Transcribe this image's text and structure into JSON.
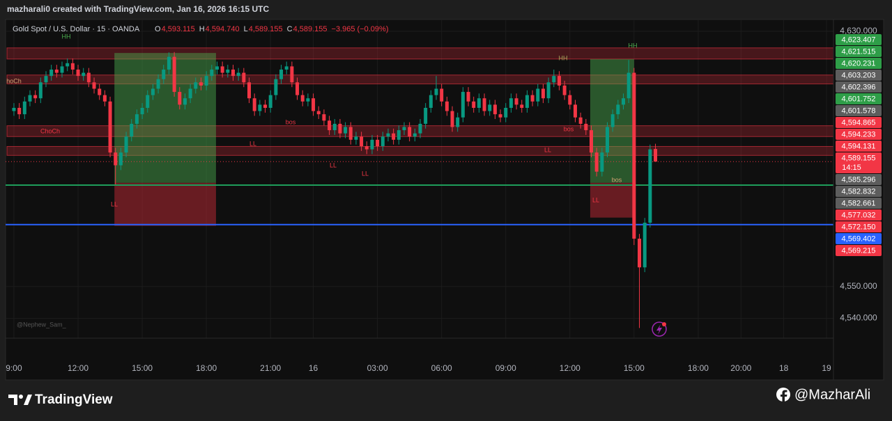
{
  "header": {
    "credit": "mazharali0 created with TradingView.com, Jan 16, 2026 16:15 UTC"
  },
  "chart_data": {
    "type": "candlestick",
    "title": "Gold Spot / U.S. Dollar · 15 · OANDA",
    "ohlc_legend": [
      "O",
      "4,593.115",
      "H",
      "4,594.740",
      "L",
      "4,589.155",
      "C",
      "4,589.155",
      "−3.965 (−0.09%)"
    ],
    "up_color": "#089981",
    "down_color": "#f23645",
    "open": [
      4605,
      4606,
      4604,
      4608,
      4610,
      4609,
      4614,
      4616,
      4618,
      4617,
      4619,
      4620,
      4618,
      4616,
      4617,
      4614,
      4612,
      4610,
      4608,
      4592,
      4588,
      4592,
      4597,
      4601,
      4604,
      4606,
      4610,
      4612,
      4615,
      4618,
      4622,
      4611,
      4607,
      4609,
      4612,
      4614,
      4613,
      4616,
      4618,
      4619,
      4617,
      4618,
      4616,
      4617,
      4614,
      4609,
      4605,
      4607,
      4606,
      4610,
      4615,
      4618,
      4619,
      4614,
      4610,
      4608,
      4609,
      4605,
      4604,
      4602,
      4599,
      4601,
      4598,
      4600,
      4596,
      4597,
      4594,
      4593,
      4596,
      4594,
      4597,
      4598,
      4596,
      4599,
      4600,
      4597,
      4598,
      4601,
      4606,
      4610,
      4612,
      4608,
      4605,
      4600,
      4603,
      4611,
      4608,
      4606,
      4609,
      4605,
      4607,
      4604,
      4603,
      4606,
      4609,
      4607,
      4606,
      4610,
      4608,
      4612,
      4609,
      4614,
      4616,
      4613,
      4610,
      4607,
      4603,
      4601,
      4599,
      4592,
      4586,
      4592,
      4600,
      4604,
      4607,
      4609,
      4617,
      4565,
      4556,
      4570,
      4593.115
    ],
    "high": [
      4607.5,
      4607.5,
      4609.5,
      4611.5,
      4611.5,
      4615.5,
      4617.5,
      4619.5,
      4619.5,
      4620.5,
      4621.5,
      4621.5,
      4619.5,
      4618.5,
      4618.5,
      4615.5,
      4613.5,
      4611.5,
      4609.5,
      4593.5,
      4593.5,
      4598.5,
      4602.5,
      4605.5,
      4607.5,
      4611.5,
      4613.5,
      4616.5,
      4619.5,
      4623.4,
      4623.5,
      4612.5,
      4610.5,
      4613.5,
      4615.5,
      4615.5,
      4617.5,
      4619.5,
      4620.5,
      4620.5,
      4619.5,
      4619.5,
      4618.5,
      4618.5,
      4615.5,
      4610.5,
      4608.5,
      4608.5,
      4611.5,
      4616.5,
      4619.5,
      4620.5,
      4620.5,
      4615.5,
      4611.5,
      4610.5,
      4610.5,
      4606.5,
      4605.5,
      4603.5,
      4602.5,
      4602.5,
      4601.5,
      4601.5,
      4598.5,
      4598.5,
      4595.5,
      4597.5,
      4597.5,
      4598.5,
      4599.5,
      4599.5,
      4600.5,
      4601.5,
      4601.5,
      4599.5,
      4602.5,
      4607.5,
      4611.5,
      4616,
      4613.5,
      4609.5,
      4606.5,
      4604.5,
      4612.5,
      4612.5,
      4609.5,
      4610.5,
      4610.5,
      4608.5,
      4608.5,
      4605.5,
      4607.5,
      4610.5,
      4610.5,
      4608.5,
      4611.5,
      4611.5,
      4613.5,
      4613.5,
      4615.5,
      4618,
      4617.5,
      4614.5,
      4611.5,
      4608.5,
      4604.5,
      4602.5,
      4600.5,
      4593.5,
      4593.5,
      4601.5,
      4605.5,
      4608.5,
      4610.5,
      4621,
      4618.5,
      4566.5,
      4571.5,
      4594.5,
      4594.74
    ],
    "low": [
      4603.5,
      4602.5,
      4602.5,
      4606.5,
      4607.5,
      4607.5,
      4612.5,
      4614.5,
      4615.5,
      4615.5,
      4617.5,
      4616.5,
      4614.5,
      4614.5,
      4612.5,
      4610.5,
      4608.5,
      4606.5,
      4590.5,
      4582,
      4586.5,
      4590.5,
      4595.5,
      4599.5,
      4602.5,
      4604.5,
      4608.5,
      4610.5,
      4613.5,
      4616.5,
      4609.5,
      4605.5,
      4605.5,
      4607.5,
      4610.5,
      4611.5,
      4611.5,
      4614.5,
      4616.5,
      4615.5,
      4615.5,
      4614.5,
      4614.5,
      4612.5,
      4607.5,
      4603.5,
      4603.5,
      4604.5,
      4604.5,
      4608.5,
      4613.5,
      4616.5,
      4612.5,
      4608.5,
      4606.5,
      4606.5,
      4603.5,
      4602.5,
      4600.5,
      4597.5,
      4597.5,
      4596.5,
      4596.5,
      4594.5,
      4594.5,
      4592.5,
      4591.5,
      4591.5,
      4592.5,
      4592.5,
      4595.5,
      4594.5,
      4594.5,
      4597.5,
      4595.5,
      4595.5,
      4596.5,
      4599.5,
      4604.5,
      4608.5,
      4606.5,
      4603.5,
      4598.5,
      4598.5,
      4601.5,
      4606.5,
      4604.5,
      4604.5,
      4603.5,
      4603.5,
      4602.5,
      4601.5,
      4601.5,
      4604.5,
      4605.5,
      4604.5,
      4604.5,
      4606.5,
      4606.5,
      4607.5,
      4607.5,
      4612.5,
      4611.5,
      4608.5,
      4605.5,
      4601.5,
      4599.5,
      4597.5,
      4590.5,
      4584.5,
      4584.5,
      4590.5,
      4598.5,
      4602.5,
      4605.5,
      4607.5,
      4563,
      4537,
      4554.5,
      4568.5,
      4589.155
    ],
    "close": [
      4606,
      4604,
      4608,
      4610,
      4609,
      4614,
      4616,
      4618,
      4617,
      4619,
      4620,
      4618,
      4616,
      4617,
      4614,
      4612,
      4610,
      4608,
      4592,
      4588,
      4592,
      4597,
      4601,
      4604,
      4606,
      4610,
      4612,
      4615,
      4618,
      4622,
      4611,
      4607,
      4609,
      4612,
      4614,
      4613,
      4616,
      4618,
      4619,
      4617,
      4618,
      4616,
      4617,
      4614,
      4609,
      4605,
      4607,
      4606,
      4610,
      4615,
      4618,
      4619,
      4614,
      4610,
      4608,
      4609,
      4605,
      4604,
      4602,
      4599,
      4601,
      4598,
      4600,
      4596,
      4597,
      4594,
      4593,
      4596,
      4594,
      4597,
      4598,
      4596,
      4599,
      4600,
      4597,
      4598,
      4601,
      4606,
      4610,
      4612,
      4608,
      4605,
      4600,
      4603,
      4611,
      4608,
      4606,
      4609,
      4605,
      4607,
      4604,
      4603,
      4606,
      4609,
      4607,
      4606,
      4610,
      4608,
      4612,
      4609,
      4614,
      4616,
      4613,
      4610,
      4607,
      4603,
      4601,
      4599,
      4592,
      4586,
      4592,
      4600,
      4604,
      4607,
      4609,
      4617,
      4565,
      4556,
      4570,
      4593,
      4589.155
    ],
    "xlim": [
      -1.56,
      153.3
    ],
    "xticks": [
      {
        "value": 0,
        "label": "9:00"
      },
      {
        "value": 12,
        "label": "12:00"
      },
      {
        "value": 24,
        "label": "15:00"
      },
      {
        "value": 36,
        "label": "18:00"
      },
      {
        "value": 48,
        "label": "21:00"
      },
      {
        "value": 56,
        "label": "16"
      },
      {
        "value": 68,
        "label": "03:00"
      },
      {
        "value": 80,
        "label": "06:00"
      },
      {
        "value": 92,
        "label": "09:00"
      },
      {
        "value": 104,
        "label": "12:00"
      },
      {
        "value": 116,
        "label": "15:00"
      },
      {
        "value": 128,
        "label": "18:00"
      },
      {
        "value": 136,
        "label": "20:00"
      },
      {
        "value": 144,
        "label": "18"
      },
      {
        "value": 152,
        "label": "19"
      }
    ],
    "ylim": [
      4533.8,
      4633.7
    ],
    "yticks": [
      {
        "value": 4630,
        "label": "4,630.000"
      },
      {
        "value": 4550,
        "label": "4,550.000"
      },
      {
        "value": 4540,
        "label": "4,540.000"
      }
    ],
    "grid": true,
    "zones": [
      {
        "top": 4624.8,
        "bottom": 4621.3
      },
      {
        "top": 4616.3,
        "bottom": 4613.5
      },
      {
        "top": 4600.4,
        "bottom": 4597
      },
      {
        "top": 4593.9,
        "bottom": 4591.1
      }
    ],
    "levels": [
      {
        "value": 4581.8,
        "color": "#1e9e5a"
      },
      {
        "value": 4569.4,
        "color": "#2962ff"
      }
    ],
    "positions": [
      {
        "start": 18.8,
        "end": 37.8,
        "target": 4623.2,
        "entry": 4582.5,
        "stop": 4569
      },
      {
        "start": 107.8,
        "end": 116,
        "target": 4621.3,
        "entry": 4582.5,
        "stop": 4571.6
      }
    ],
    "annotations": [
      "HH",
      "HH",
      "HH",
      "hoCh",
      "ChoCh",
      "LL",
      "LL",
      "LL",
      "LL",
      "LL",
      "LL",
      "bos",
      "bos",
      "bos"
    ],
    "watermark": "@Nephew_Sam_",
    "price_labels": [
      {
        "value": 4623.407,
        "label": "4,623.407",
        "color": "#2e9e48"
      },
      {
        "value": 4621.515,
        "label": "4,621.515",
        "color": "#2e9e48"
      },
      {
        "value": 4620.231,
        "label": "4,620.231",
        "color": "#2e9e48"
      },
      {
        "value": 4603.203,
        "label": "4,603.203",
        "color": "#5d5d5d"
      },
      {
        "value": 4602.396,
        "label": "4,602.396",
        "color": "#5d5d5d"
      },
      {
        "value": 4601.752,
        "label": "4,601.752",
        "color": "#2e9e48"
      },
      {
        "value": 4601.578,
        "label": "4,601.578",
        "color": "#5d5d5d"
      },
      {
        "value": 4594.865,
        "label": "4,594.865",
        "color": "#f23645"
      },
      {
        "value": 4594.233,
        "label": "4,594.233",
        "color": "#f23645"
      },
      {
        "value": 4594.131,
        "label": "4,594.131",
        "color": "#f23645"
      },
      {
        "value": 4589.155,
        "label": "4,589.155",
        "sublabel": "14:15",
        "color": "#f23645"
      },
      {
        "value": 4585.296,
        "label": "4,585.296",
        "color": "#5d5d5d"
      },
      {
        "value": 4582.832,
        "label": "4,582.832",
        "color": "#5d5d5d"
      },
      {
        "value": 4582.661,
        "label": "4,582.661",
        "color": "#5d5d5d"
      },
      {
        "value": 4577.032,
        "label": "4,577.032",
        "color": "#f23645"
      },
      {
        "value": 4572.15,
        "label": "4,572.150",
        "color": "#f23645"
      },
      {
        "value": 4569.402,
        "label": "4,569.402",
        "color": "#2962ff"
      },
      {
        "value": 4569.215,
        "label": "4,569.215",
        "color": "#f23645"
      }
    ]
  },
  "footer": {
    "brand": "TradingView",
    "handle": "@MazharAli"
  }
}
